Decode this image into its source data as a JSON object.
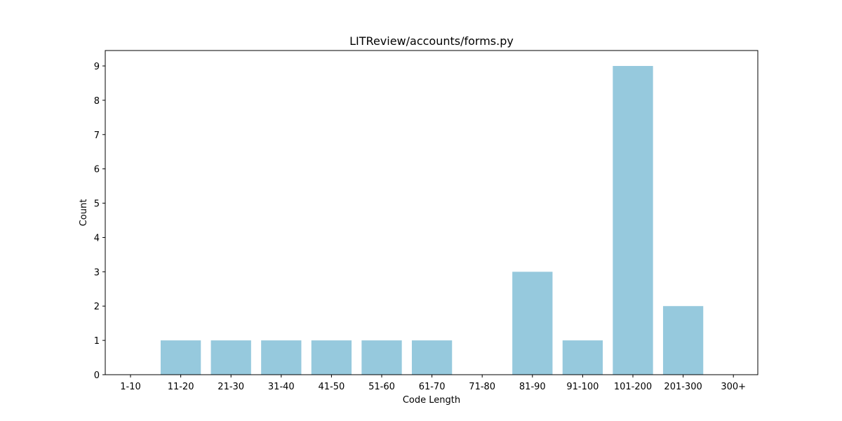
{
  "chart_data": {
    "type": "bar",
    "title": "LITReview/accounts/forms.py",
    "xlabel": "Code Length",
    "ylabel": "Count",
    "categories": [
      "1-10",
      "11-20",
      "21-30",
      "31-40",
      "41-50",
      "51-60",
      "61-70",
      "71-80",
      "81-90",
      "91-100",
      "101-200",
      "201-300",
      "300+"
    ],
    "values": [
      0,
      1,
      1,
      1,
      1,
      1,
      1,
      0,
      3,
      1,
      9,
      2,
      0
    ],
    "ylim": [
      0,
      9.45
    ],
    "yticks": [
      0,
      1,
      2,
      3,
      4,
      5,
      6,
      7,
      8,
      9
    ],
    "bar_color": "#96c9dd",
    "grid": false,
    "legend": false
  }
}
